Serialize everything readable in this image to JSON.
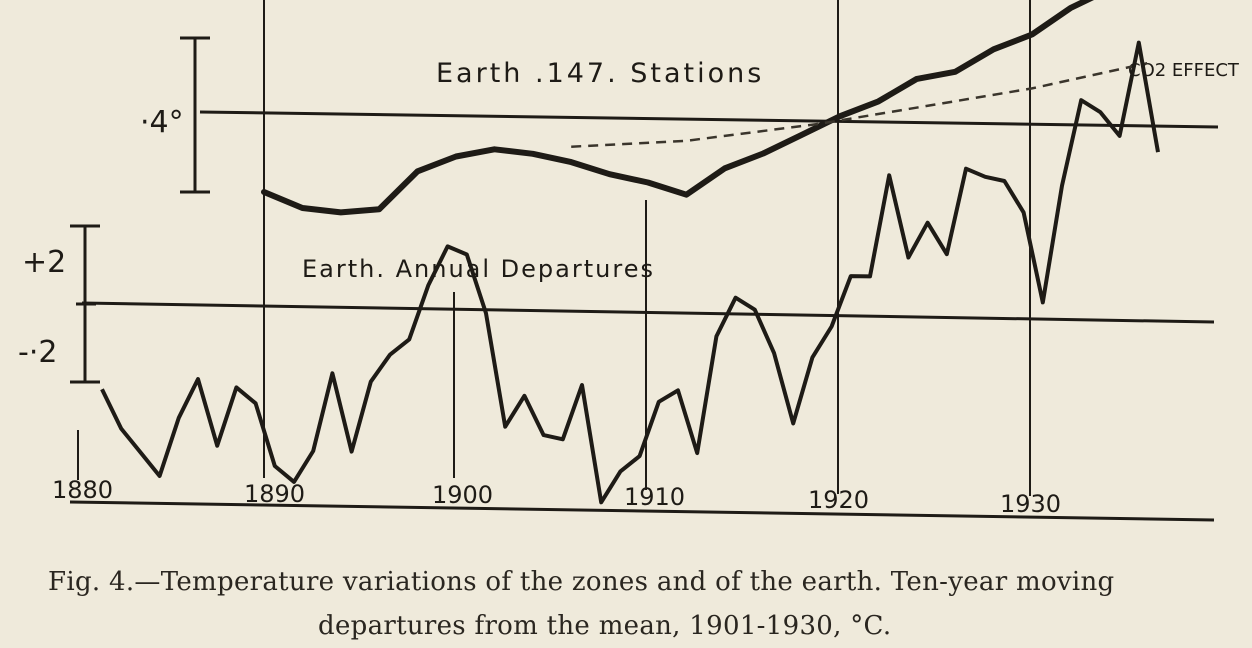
{
  "figure": {
    "caption_line1": "Fig. 4.—Temperature variations of the zones and of the earth. Ten-year moving",
    "caption_line2": "departures from the mean, 1901-1930, °C."
  },
  "colors": {
    "paper": "#efeadb",
    "ink": "#1e1b16"
  },
  "chart_data": [
    {
      "type": "line",
      "title": "Earth .147. Stations",
      "scale_label": "·4°",
      "annotation": "CO2 EFFECT",
      "series": [
        {
          "x": [
            1890,
            1892,
            1894,
            1896,
            1898,
            1900,
            1902,
            1904,
            1906,
            1908,
            1910,
            1912,
            1914,
            1916,
            1918,
            1920,
            1922,
            1924,
            1926,
            1928,
            1930,
            1932,
            1934,
            1935
          ],
          "values": [
            -0.2,
            -0.24,
            -0.25,
            -0.24,
            -0.14,
            -0.1,
            -0.08,
            -0.09,
            -0.11,
            -0.14,
            -0.16,
            -0.19,
            -0.12,
            -0.08,
            -0.03,
            0.02,
            0.06,
            0.12,
            0.14,
            0.2,
            0.24,
            0.31,
            0.36,
            0.38
          ]
        },
        {
          "values": [
            -0.07,
            -0.05,
            0.0,
            0.1,
            0.17
          ],
          "x": [
            1906,
            1912,
            1919,
            1930,
            1936
          ]
        }
      ],
      "xlim": [
        1880,
        1937
      ]
    },
    {
      "type": "line",
      "title": "Earth. Annual Departures",
      "scale_labels": [
        "+2",
        "-·2"
      ],
      "x": [
        1880,
        1881,
        1882,
        1883,
        1884,
        1885,
        1886,
        1887,
        1888,
        1889,
        1890,
        1891,
        1892,
        1893,
        1894,
        1895,
        1896,
        1897,
        1898,
        1899,
        1900,
        1901,
        1902,
        1903,
        1904,
        1905,
        1906,
        1907,
        1908,
        1909,
        1910,
        1911,
        1912,
        1913,
        1914,
        1915,
        1916,
        1917,
        1918,
        1919,
        1920,
        1921,
        1922,
        1923,
        1924,
        1925,
        1926,
        1927,
        1928,
        1929,
        1930,
        1931,
        1932,
        1933,
        1934,
        1935
      ],
      "values": [
        -0.22,
        -0.32,
        -0.38,
        -0.44,
        -0.29,
        -0.19,
        -0.36,
        -0.21,
        -0.25,
        -0.41,
        -0.45,
        -0.37,
        -0.17,
        -0.37,
        -0.19,
        -0.12,
        -0.08,
        0.06,
        0.16,
        0.14,
        -0.01,
        -0.3,
        -0.22,
        -0.32,
        -0.33,
        -0.19,
        -0.49,
        -0.41,
        -0.37,
        -0.23,
        -0.2,
        -0.36,
        -0.06,
        0.04,
        0.01,
        -0.1,
        -0.28,
        -0.11,
        -0.03,
        0.1,
        0.1,
        0.36,
        0.15,
        0.24,
        0.16,
        0.38,
        0.36,
        0.35,
        0.27,
        0.04,
        0.34,
        0.56,
        0.53,
        0.47,
        0.71,
        0.43
      ],
      "xlim": [
        1880,
        1937
      ]
    }
  ],
  "x_axis": {
    "tick_labels": [
      "1880",
      "1890",
      "1900",
      "1910",
      "1920",
      "1930"
    ]
  }
}
